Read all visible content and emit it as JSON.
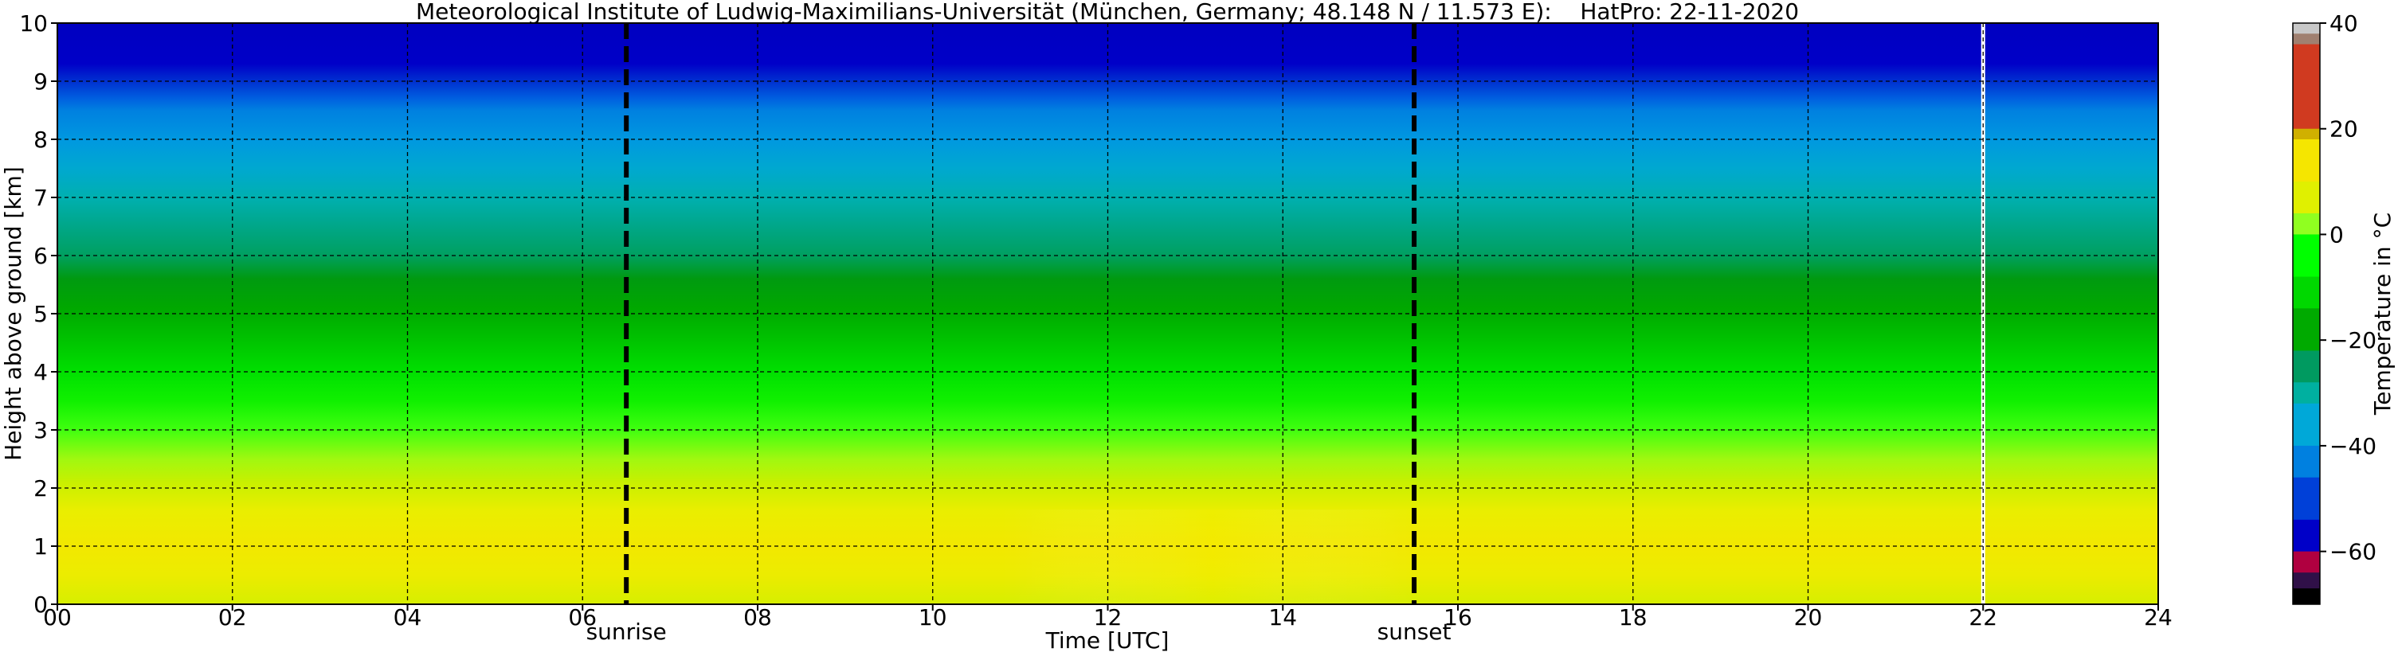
{
  "chart_data": {
    "type": "heatmap",
    "title": "Meteorological Institute of Ludwig-Maximilians-Universität (München, Germany; 48.148 N / 11.573 E):    HatPro: 22-11-2020",
    "xlabel": "Time [UTC]",
    "ylabel": "Height above ground [km]",
    "xlim": [
      0,
      24
    ],
    "ylim": [
      0,
      10
    ],
    "x_ticks": [
      0,
      2,
      4,
      6,
      8,
      10,
      12,
      14,
      16,
      18,
      20,
      22,
      24
    ],
    "x_tick_labels": [
      "00",
      "02",
      "04",
      "06",
      "08",
      "10",
      "12",
      "14",
      "16",
      "18",
      "20",
      "22",
      "24"
    ],
    "y_ticks": [
      0,
      1,
      2,
      3,
      4,
      5,
      6,
      7,
      8,
      9,
      10
    ],
    "y_tick_labels": [
      "0",
      "1",
      "2",
      "3",
      "4",
      "5",
      "6",
      "7",
      "8",
      "9",
      "10"
    ],
    "grid": true,
    "colorbar": {
      "label": "Temperature in °C",
      "range": [
        -70,
        40
      ],
      "ticks": [
        40,
        20,
        0,
        -20,
        -40,
        -60
      ],
      "tick_labels": [
        "40",
        "20",
        "0",
        "−20",
        "−40",
        "−60"
      ],
      "segments": [
        {
          "from": 38,
          "to": 40,
          "color": "#c8c8c8"
        },
        {
          "from": 36,
          "to": 38,
          "color": "#a08070"
        },
        {
          "from": 20,
          "to": 36,
          "color": "#d03a20"
        },
        {
          "from": 18,
          "to": 20,
          "color": "#d0b000"
        },
        {
          "from": 10,
          "to": 18,
          "color": "#f5e600"
        },
        {
          "from": 4,
          "to": 10,
          "color": "#e0f000"
        },
        {
          "from": 0,
          "to": 4,
          "color": "#90ff20"
        },
        {
          "from": -8,
          "to": 0,
          "color": "#00ff00"
        },
        {
          "from": -14,
          "to": -8,
          "color": "#00d800"
        },
        {
          "from": -22,
          "to": -14,
          "color": "#00aa00"
        },
        {
          "from": -28,
          "to": -22,
          "color": "#009a60"
        },
        {
          "from": -32,
          "to": -28,
          "color": "#00b0a0"
        },
        {
          "from": -40,
          "to": -32,
          "color": "#00a8d8"
        },
        {
          "from": -46,
          "to": -40,
          "color": "#0080e0"
        },
        {
          "from": -54,
          "to": -46,
          "color": "#0040d8"
        },
        {
          "from": -60,
          "to": -54,
          "color": "#0000c8"
        },
        {
          "from": -64,
          "to": -60,
          "color": "#b00040"
        },
        {
          "from": -67,
          "to": -64,
          "color": "#301048"
        },
        {
          "from": -70,
          "to": -67,
          "color": "#000000"
        }
      ]
    },
    "height_profile_km": [
      {
        "h": 0.0,
        "color": "#d6ee00"
      },
      {
        "h": 0.5,
        "color": "#ecec00"
      },
      {
        "h": 1.0,
        "color": "#f2e800"
      },
      {
        "h": 1.6,
        "color": "#eaee00"
      },
      {
        "h": 2.1,
        "color": "#c8f000"
      },
      {
        "h": 2.5,
        "color": "#a0f810"
      },
      {
        "h": 3.0,
        "color": "#40ff10"
      },
      {
        "h": 3.5,
        "color": "#10f000"
      },
      {
        "h": 4.0,
        "color": "#00e000"
      },
      {
        "h": 4.6,
        "color": "#00c000"
      },
      {
        "h": 5.1,
        "color": "#00a800"
      },
      {
        "h": 5.6,
        "color": "#009a10"
      },
      {
        "h": 6.0,
        "color": "#00a060"
      },
      {
        "h": 6.6,
        "color": "#00a890"
      },
      {
        "h": 7.0,
        "color": "#00b0b0"
      },
      {
        "h": 7.5,
        "color": "#00a8d0"
      },
      {
        "h": 8.0,
        "color": "#0098e0"
      },
      {
        "h": 8.5,
        "color": "#0080e0"
      },
      {
        "h": 8.7,
        "color": "#0060e0"
      },
      {
        "h": 9.0,
        "color": "#0030d0"
      },
      {
        "h": 9.3,
        "color": "#0000c8"
      },
      {
        "h": 10.0,
        "color": "#0000c0"
      }
    ],
    "events": [
      {
        "name": "sunrise",
        "time": 6.5
      },
      {
        "name": "sunset",
        "time": 15.5
      }
    ],
    "data_gap": {
      "time": 22.0
    }
  }
}
